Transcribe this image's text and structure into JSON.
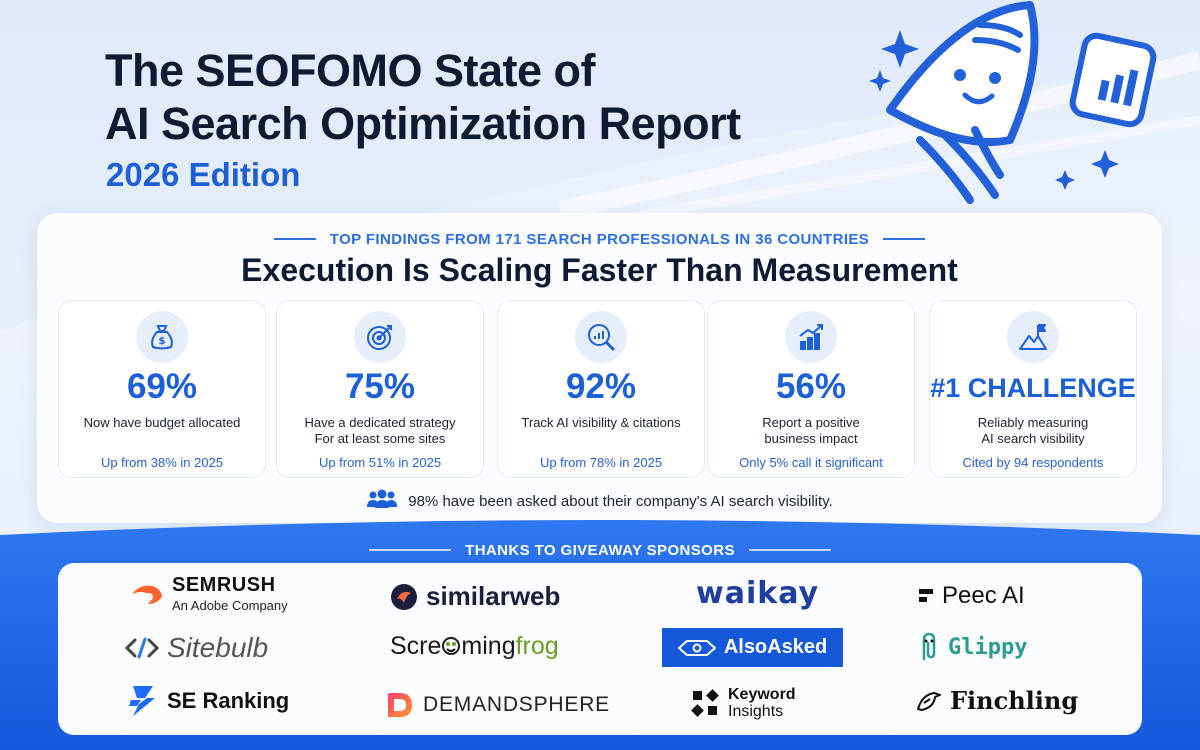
{
  "header": {
    "title_line1": "The SEOFOMO State of",
    "title_line2": "AI Search Optimization Report",
    "edition": "2026 Edition"
  },
  "findings": {
    "kicker": "TOP FINDINGS FROM 171 SEARCH PROFESSIONALS IN 36 COUNTRIES",
    "headline": "Execution Is Scaling Faster Than Measurement",
    "stats": [
      {
        "icon": "money-bag-icon",
        "value": "69%",
        "description": "Now have budget allocated",
        "footnote": "Up from 38% in 2025"
      },
      {
        "icon": "target-icon",
        "value": "75%",
        "description": "Have a dedicated strategy\nFor at least some sites",
        "footnote": "Up from 51% in 2025"
      },
      {
        "icon": "chart-magnifier-icon",
        "value": "92%",
        "description": "Track AI visibility & citations",
        "footnote": "Up from 78% in 2025"
      },
      {
        "icon": "growth-chart-icon",
        "value": "56%",
        "description": "Report a positive\nbusiness impact",
        "footnote": "Only 5% call it significant"
      },
      {
        "icon": "mountain-flag-icon",
        "value": "#1 CHALLENGE",
        "description": "Reliably measuring\nAI search visibility",
        "footnote": "Cited by 94 respondents"
      }
    ],
    "asked": "98% have been asked about their company's AI search visibility."
  },
  "sponsors": {
    "title": "THANKS TO GIVEAWAY SPONSORS",
    "semrush": {
      "name": "SEMRUSH",
      "sub": "An Adobe Company"
    },
    "similarweb": {
      "name": "similarweb"
    },
    "waikay": {
      "name": "waikay"
    },
    "peec": {
      "name": "Peec AI"
    },
    "sitebulb": {
      "name": "Sitebulb"
    },
    "screamingfrog": {
      "name_a": "Scre",
      "name_b": "ming",
      "name_c": "frog"
    },
    "alsoasked": {
      "name": "AlsoAsked"
    },
    "glippy": {
      "name": "Glippy"
    },
    "seranking": {
      "name": "SE Ranking"
    },
    "demandsphere": {
      "name": "DEMANDSPHERE"
    },
    "keywordinsights": {
      "name": "Keyword",
      "sub": "Insights"
    },
    "finchling": {
      "name": "Finchling"
    }
  },
  "colors": {
    "accent": "#1d5fd6",
    "navy": "#0f1b33",
    "band": "#1a66e8"
  }
}
